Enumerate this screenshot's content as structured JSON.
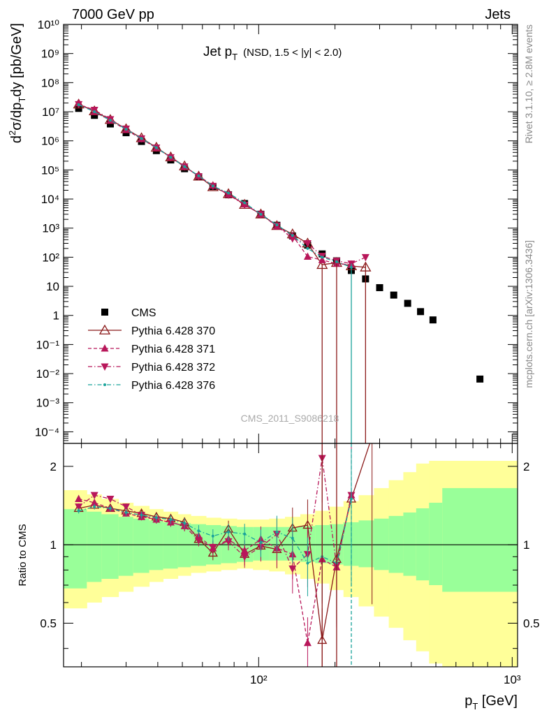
{
  "header": {
    "left": "7000 GeV pp",
    "right": "Jets"
  },
  "plot_title": {
    "main": "Jet p",
    "sub": "T",
    "extra": "(NSD, 1.5 < |y| < 2.0)"
  },
  "side_text": {
    "top": "Rivet 3.1.10, ≥ 2.8M events",
    "bottom": "mcplots.cern.ch [arXiv:1306.3436]"
  },
  "watermark": "CMS_2011_S9086218",
  "chart_data": [
    {
      "type": "scatter",
      "title": "Jet pT (NSD, 1.5 < |y| < 2.0)",
      "xlabel": "p_T [GeV]",
      "ylabel": "d²σ/dp_T dy [pb/GeV]",
      "xscale": "log",
      "yscale": "log",
      "xlim": [
        17,
        1050
      ],
      "ylim": [
        4e-05,
        10000000000
      ],
      "x_tick_labels": [
        "10²",
        "10³"
      ],
      "y_tick_labels": [
        "10⁻⁴",
        "10⁻³",
        "10⁻²",
        "10⁻¹",
        "1",
        "10",
        "10²",
        "10³",
        "10⁴",
        "10⁵",
        "10⁶",
        "10⁷",
        "10⁸",
        "10⁹",
        "10¹⁰"
      ],
      "legend_position": "bottom-left",
      "series": [
        {
          "name": "CMS",
          "color": "#000000",
          "marker": "square",
          "line": "none",
          "x": [
            19.5,
            22.5,
            26,
            30,
            34.5,
            39.5,
            45,
            51,
            58,
            66,
            76,
            88,
            102,
            118,
            136,
            156,
            178,
            203,
            232,
            264,
            300,
            341,
            387,
            435,
            487,
            746
          ],
          "y": [
            13000000,
            7500000,
            3800000,
            1900000,
            950000,
            460000,
            220000,
            110000,
            58000,
            27000,
            14000,
            7000,
            3000,
            1250,
            540,
            260,
            130,
            75,
            35,
            18,
            9,
            5,
            2.6,
            1.35,
            0.7,
            0.0065
          ]
        },
        {
          "name": "Pythia 6.428 370",
          "color": "#8b1a1a",
          "marker": "open-triangle-up",
          "line": "solid",
          "x": [
            19.5,
            22.5,
            26,
            30,
            34.5,
            39.5,
            45,
            51,
            58,
            66,
            76,
            88,
            102,
            118,
            136,
            156,
            178,
            203,
            232,
            264
          ],
          "y": [
            18000000,
            10500000,
            5300000,
            2550000,
            1250000,
            590000,
            275000,
            135000,
            60000,
            26000,
            15000,
            6400,
            3000,
            1200,
            620,
            300,
            55,
            65,
            50,
            45
          ]
        },
        {
          "name": "Pythia 6.428 371",
          "color": "#b8175a",
          "marker": "triangle-up",
          "line": "dashed",
          "x": [
            19.5,
            22.5,
            26,
            30,
            34.5,
            39.5,
            45,
            51,
            58,
            66,
            76,
            88,
            102,
            118,
            136,
            156,
            178,
            203,
            232
          ],
          "y": [
            19500000,
            10000000,
            5000000,
            2400000,
            1150000,
            570000,
            270000,
            128000,
            62000,
            29000,
            14500,
            6600,
            3000,
            1150,
            550,
            105,
            80,
            60,
            55
          ]
        },
        {
          "name": "Pythia 6.428 372",
          "color": "#b8175a",
          "marker": "triangle-down",
          "line": "dashdot",
          "x": [
            19.5,
            22.5,
            26,
            30,
            34.5,
            39.5,
            45,
            51,
            58,
            66,
            76,
            88,
            102,
            118,
            136,
            156,
            178,
            203,
            232,
            264
          ],
          "y": [
            18000000,
            11500000,
            5500000,
            2600000,
            1200000,
            580000,
            270000,
            130000,
            60000,
            28000,
            14000,
            6300,
            3000,
            1200,
            440,
            300,
            110,
            75,
            60,
            100
          ]
        },
        {
          "name": "Pythia 6.428 376",
          "color": "#1aa39a",
          "marker": "small-dot",
          "line": "dashdot",
          "x": [
            19.5,
            22.5,
            26,
            30,
            34.5,
            39.5,
            45,
            51,
            58,
            66,
            76,
            88,
            102,
            118,
            136,
            156,
            178,
            203,
            232
          ],
          "y": [
            17500000,
            10000000,
            5100000,
            2500000,
            1200000,
            580000,
            270000,
            130000,
            63000,
            28000,
            16000,
            7400,
            3000,
            1300,
            560,
            200,
            100,
            70,
            45
          ]
        }
      ]
    },
    {
      "type": "line",
      "ylabel": "Ratio to CMS",
      "xscale": "log",
      "yscale": "log",
      "xlim": [
        17,
        1050
      ],
      "ylim": [
        0.34,
        2.45
      ],
      "y_tick_labels": [
        "0.5",
        "1",
        "2"
      ],
      "reference_line": 1,
      "bands": {
        "bin_edges": [
          17,
          21,
          24,
          28,
          32,
          37,
          42,
          48,
          54,
          62,
          71,
          82,
          95,
          110,
          127,
          146,
          167,
          190,
          216,
          248,
          285,
          326,
          372,
          418,
          470,
          530,
          1050
        ],
        "inner_lower": [
          0.68,
          0.72,
          0.74,
          0.76,
          0.78,
          0.8,
          0.81,
          0.82,
          0.83,
          0.84,
          0.85,
          0.86,
          0.87,
          0.87,
          0.87,
          0.86,
          0.85,
          0.84,
          0.83,
          0.82,
          0.8,
          0.78,
          0.76,
          0.73,
          0.7,
          0.66
        ],
        "inner_upper": [
          1.37,
          1.34,
          1.31,
          1.28,
          1.26,
          1.24,
          1.22,
          1.21,
          1.2,
          1.19,
          1.18,
          1.17,
          1.17,
          1.17,
          1.17,
          1.18,
          1.19,
          1.2,
          1.22,
          1.24,
          1.26,
          1.29,
          1.33,
          1.38,
          1.45,
          1.65
        ],
        "outer_lower": [
          0.57,
          0.6,
          0.63,
          0.66,
          0.69,
          0.72,
          0.74,
          0.76,
          0.78,
          0.79,
          0.8,
          0.81,
          0.8,
          0.79,
          0.77,
          0.74,
          0.71,
          0.67,
          0.63,
          0.58,
          0.53,
          0.48,
          0.43,
          0.39,
          0.35,
          0.34
        ],
        "outer_upper": [
          1.62,
          1.56,
          1.5,
          1.45,
          1.41,
          1.37,
          1.34,
          1.31,
          1.29,
          1.27,
          1.26,
          1.25,
          1.25,
          1.26,
          1.28,
          1.31,
          1.35,
          1.4,
          1.47,
          1.55,
          1.65,
          1.77,
          1.9,
          2.05,
          2.1,
          2.1
        ],
        "inner_color": "#99ff99",
        "outer_color": "#ffff99"
      },
      "series": [
        {
          "name": "Pythia 6.428 370",
          "color": "#8b1a1a",
          "marker": "open-triangle-up",
          "line": "solid",
          "x": [
            19.5,
            22.5,
            26,
            30,
            34.5,
            39.5,
            45,
            51,
            58,
            66,
            76,
            88,
            102,
            118,
            136,
            156,
            178,
            203,
            232,
            280
          ],
          "y": [
            1.38,
            1.42,
            1.38,
            1.35,
            1.32,
            1.28,
            1.26,
            1.22,
            1.05,
            0.93,
            1.15,
            0.92,
            0.99,
            0.96,
            1.16,
            1.19,
            0.43,
            0.88,
            1.5,
            2.6
          ]
        },
        {
          "name": "Pythia 6.428 371",
          "color": "#b8175a",
          "marker": "triangle-up",
          "line": "dashed",
          "x": [
            19.5,
            22.5,
            26,
            30,
            34.5,
            39.5,
            45,
            51,
            58,
            66,
            76,
            88,
            102,
            118,
            136,
            156,
            178,
            203,
            232
          ],
          "y": [
            1.5,
            1.45,
            1.38,
            1.32,
            1.28,
            1.25,
            1.22,
            1.18,
            1.08,
            0.97,
            1.05,
            0.95,
            1.05,
            0.97,
            0.92,
            0.42,
            0.88,
            0.82,
            1.55
          ]
        },
        {
          "name": "Pythia 6.428 372",
          "color": "#b8175a",
          "marker": "triangle-down",
          "line": "dashdot",
          "x": [
            19.5,
            22.5,
            26,
            30,
            34.5,
            39.5,
            45,
            51,
            58,
            66,
            76,
            88,
            102,
            118,
            136,
            156,
            178,
            203,
            232
          ],
          "y": [
            1.4,
            1.55,
            1.5,
            1.4,
            1.3,
            1.25,
            1.22,
            1.18,
            1.04,
            0.98,
            1.03,
            0.9,
            0.98,
            1.1,
            0.81,
            0.92,
            2.15,
            0.83,
            1.55
          ]
        },
        {
          "name": "Pythia 6.428 376",
          "color": "#1aa39a",
          "marker": "small-dot",
          "line": "dashdot",
          "x": [
            19.5,
            22.5,
            26,
            30,
            34.5,
            39.5,
            45,
            51,
            58,
            66,
            76,
            88,
            102,
            118,
            136,
            156,
            178,
            203,
            232
          ],
          "y": [
            1.35,
            1.4,
            1.38,
            1.33,
            1.3,
            1.27,
            1.25,
            1.21,
            1.13,
            1.08,
            1.12,
            1.1,
            1.02,
            1.12,
            1.06,
            0.85,
            0.9,
            0.85,
            1.5
          ]
        }
      ]
    }
  ]
}
